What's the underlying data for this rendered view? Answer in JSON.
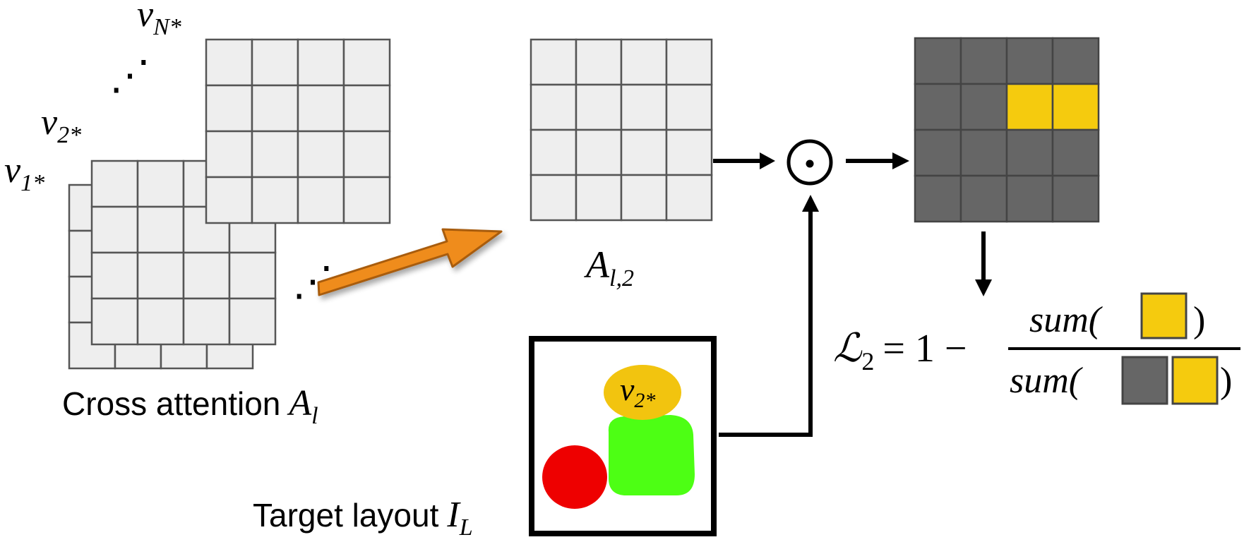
{
  "stack": {
    "labels": {
      "v1": {
        "base": "v",
        "sub": "1*"
      },
      "v2": {
        "base": "v",
        "sub": "2*"
      },
      "vN": {
        "base": "v",
        "sub": "N*"
      }
    },
    "dots_top": "⋰",
    "dots_side": "⋰",
    "caption": "Cross attention",
    "caption_math": {
      "base": "A",
      "sub": "l"
    }
  },
  "map": {
    "label": {
      "base": "A",
      "sub": "l,2"
    }
  },
  "operator": {
    "symbol": "⊙"
  },
  "layout": {
    "caption": "Target layout",
    "caption_math": {
      "base": "I",
      "sub": "L"
    },
    "blob_label": {
      "base": "v",
      "sub": "2*"
    }
  },
  "loss": {
    "lhs": "ℒ",
    "lhs_sub": "2",
    "rhs": "= 1 −",
    "numerator": "sum(",
    "denominator": "sum(",
    "close": ")"
  },
  "colors": {
    "grid_fill": "#eeeeee",
    "grid_line": "#555555",
    "masked_cell": "#666666",
    "highlight_cell": "#f5cb0e",
    "arrow_orange": "#ef8c1a",
    "arrow_orange_edge": "#a85b0b",
    "blob_red": "#ee0000",
    "blob_green": "#4dff14",
    "blob_yellow": "#f2c40f"
  }
}
